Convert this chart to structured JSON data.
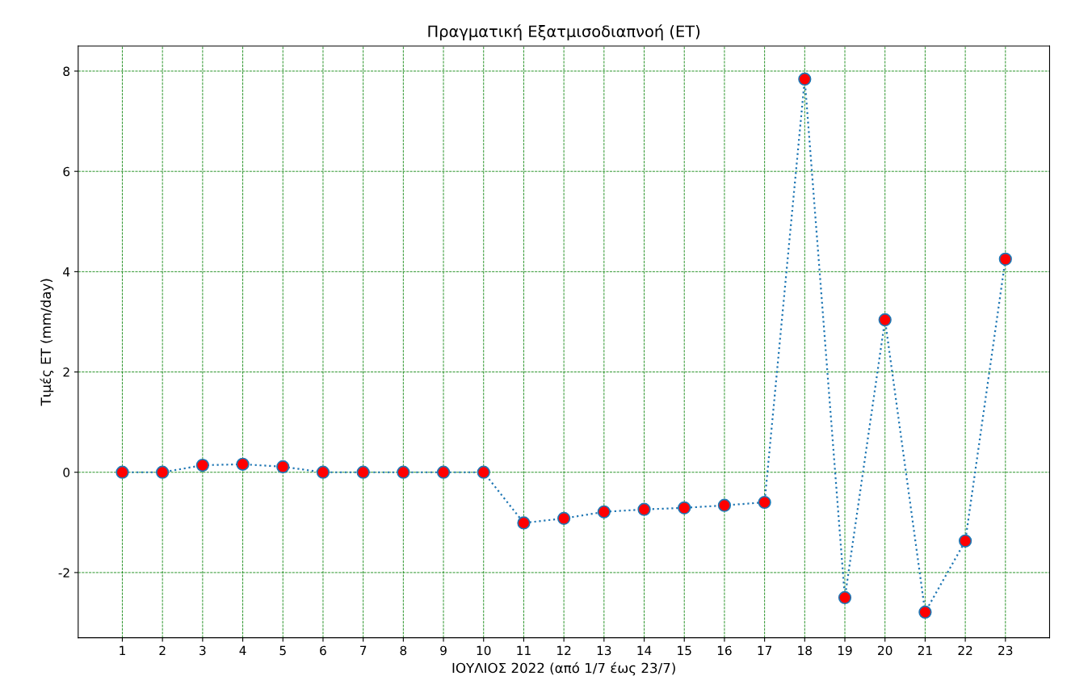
{
  "chart_data": {
    "type": "line",
    "title": "Πραγματική Εξατμισοδιαπνοή (ET)",
    "xlabel": "ΙΟΥΛΙΟΣ 2022 (από 1/7 έως 23/7)",
    "ylabel": "Τιμές ET (mm/day)",
    "x": [
      1,
      2,
      3,
      4,
      5,
      6,
      7,
      8,
      9,
      10,
      11,
      12,
      13,
      14,
      15,
      16,
      17,
      18,
      19,
      20,
      21,
      22,
      23
    ],
    "series": [
      {
        "color": "#1f77b4",
        "colors": [
          "#ff0000",
          "#ff0000",
          "#ff0000",
          "#ff0000",
          "#ff0000",
          "#ff0000",
          "#ff0000",
          "#ff0000",
          "#ff0000",
          "#ff0000",
          "#ff0000",
          "#ff0000",
          "#ff0000",
          "#ff0000",
          "#ff0000",
          "#ff0000",
          "#ff0000",
          "#ff0000",
          "#ff0000",
          "#ff0000",
          "#ff0000",
          "#ff0000",
          "#ff0000"
        ],
        "values": [
          0,
          0,
          0.14,
          0.16,
          0.11,
          0,
          0,
          0,
          0,
          0,
          -1.01,
          -0.92,
          -0.79,
          -0.74,
          -0.71,
          -0.66,
          -0.6,
          7.84,
          -2.5,
          3.04,
          -2.79,
          -1.37,
          4.25
        ]
      }
    ],
    "xlim": [
      -0.1,
      24.1
    ],
    "xticks": [
      1,
      2,
      3,
      4,
      5,
      6,
      7,
      8,
      9,
      10,
      11,
      12,
      13,
      14,
      15,
      16,
      17,
      18,
      19,
      20,
      21,
      22,
      23
    ],
    "ylim": [
      -3.3,
      8.5
    ],
    "yticks": [
      -2,
      0,
      2,
      4,
      6,
      8
    ],
    "grid": true,
    "marker": "circle",
    "line_style": "dotted"
  }
}
